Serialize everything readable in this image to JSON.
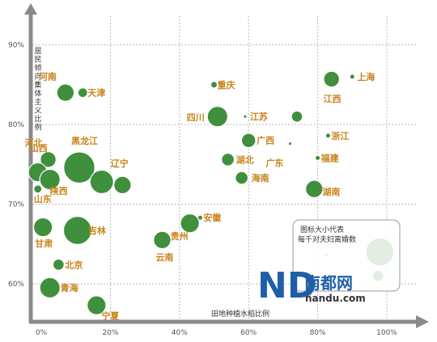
{
  "chart_data": {
    "type": "scatter",
    "xlabel": "田地种植水稻比例",
    "ylabel": "居民倾向集体主义比例",
    "xlim": [
      -2,
      100
    ],
    "ylim": [
      55.5,
      90
    ],
    "x_ticks": [
      "0%",
      "20%",
      "40%",
      "60%",
      "80%",
      "100%"
    ],
    "y_ticks": [
      "60%",
      "70%",
      "80%",
      "90%"
    ],
    "grid": true,
    "note": "图标大小代表每千对夫妇离婚数",
    "points": [
      {
        "name": "河南",
        "x": 7,
        "y": 84,
        "size": 10
      },
      {
        "name": "天津",
        "x": 12,
        "y": 84,
        "size": 5
      },
      {
        "name": "重庆",
        "x": 50,
        "y": 85,
        "size": 3
      },
      {
        "name": "上海",
        "x": 90,
        "y": 86,
        "size": 2
      },
      {
        "name": "江西",
        "x": 84,
        "y": 85.7,
        "size": 9
      },
      {
        "name": "四川",
        "x": 51,
        "y": 81,
        "size": 12
      },
      {
        "name": "江苏",
        "x": 59,
        "y": 81,
        "size": 1
      },
      {
        "name": "",
        "x": 74,
        "y": 81,
        "size": 6
      },
      {
        "name": "浙江",
        "x": 83,
        "y": 78.6,
        "size": 2
      },
      {
        "name": "广西",
        "x": 60,
        "y": 78,
        "size": 8
      },
      {
        "name": "广东",
        "x": 72,
        "y": 77.6,
        "size": 1
      },
      {
        "name": "湖北",
        "x": 54,
        "y": 75.6,
        "size": 7
      },
      {
        "name": "福建",
        "x": 80,
        "y": 75.8,
        "size": 2
      },
      {
        "name": "海南",
        "x": 58,
        "y": 73.3,
        "size": 7
      },
      {
        "name": "湖南",
        "x": 79,
        "y": 71.9,
        "size": 10
      },
      {
        "name": "河北",
        "x": 2,
        "y": 75.6,
        "size": 9
      },
      {
        "name": "山西",
        "x": -1,
        "y": 74,
        "size": 11
      },
      {
        "name": "黑龙江",
        "x": 11,
        "y": 74.6,
        "size": 19
      },
      {
        "name": "辽宁",
        "x": 17.5,
        "y": 72.8,
        "size": 14
      },
      {
        "name": "",
        "x": 23.5,
        "y": 72.4,
        "size": 10
      },
      {
        "name": "陕西",
        "x": 2.5,
        "y": 73.1,
        "size": 12
      },
      {
        "name": "山东",
        "x": -1,
        "y": 71.9,
        "size": 4
      },
      {
        "name": "安徽",
        "x": 46,
        "y": 68.3,
        "size": 2
      },
      {
        "name": "贵州",
        "x": 43,
        "y": 67.6,
        "size": 11
      },
      {
        "name": "甘肃",
        "x": 0.5,
        "y": 67.1,
        "size": 11
      },
      {
        "name": "吉林",
        "x": 10.5,
        "y": 66.7,
        "size": 17
      },
      {
        "name": "云南",
        "x": 35,
        "y": 65.5,
        "size": 10
      },
      {
        "name": "北京",
        "x": 5,
        "y": 62.4,
        "size": 6
      },
      {
        "name": "青海",
        "x": 2.5,
        "y": 59.5,
        "size": 12
      },
      {
        "name": "宁夏",
        "x": 16,
        "y": 57.3,
        "size": 11
      },
      {
        "name": "",
        "x": 98,
        "y": 64,
        "size": 17
      },
      {
        "name": "",
        "x": 97.5,
        "y": 61,
        "size": 6
      },
      {
        "name": "",
        "x": 82.5,
        "y": 63.6,
        "size": 1
      }
    ]
  },
  "legend": {
    "line1": "图标大小代表",
    "line2": "每千对夫妇离婚数"
  },
  "brand": {
    "logo_letters": "ND",
    "name": "南都网",
    "url": "nandu.com"
  },
  "colors": {
    "bubble": "#3f8f3c",
    "label": "#c8831a",
    "axis": "#8a8a8a",
    "brand_blue": "#1f5fa8",
    "brand_green": "#5aa832"
  }
}
